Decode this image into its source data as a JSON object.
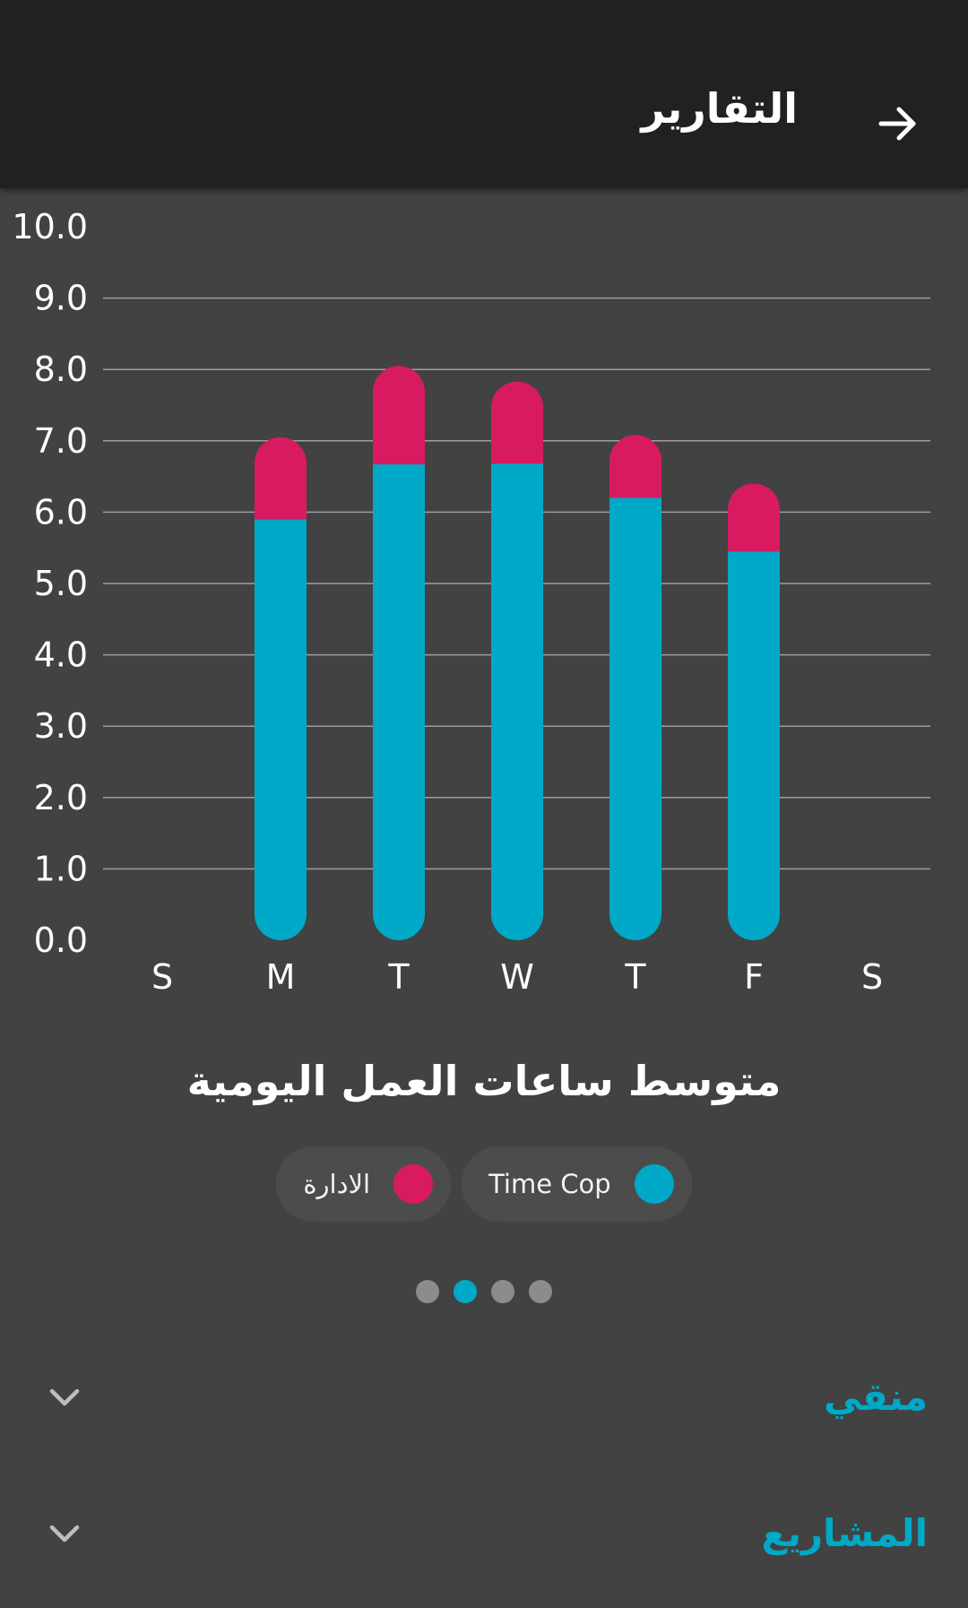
{
  "appbar": {
    "title": "التقارير",
    "back_icon": "arrow-forward-icon"
  },
  "colors": {
    "timecop": "#00a9c7",
    "admin": "#d81b60",
    "background": "#424242",
    "appbar": "#212121"
  },
  "chart_data": {
    "type": "bar",
    "stacked": true,
    "title": "متوسط ساعات العمل اليومية",
    "categories": [
      "S",
      "M",
      "T",
      "W",
      "T",
      "F",
      "S"
    ],
    "ylim": [
      0,
      10
    ],
    "yticks": [
      "0.0",
      "1.0",
      "2.0",
      "3.0",
      "4.0",
      "5.0",
      "6.0",
      "7.0",
      "8.0",
      "9.0",
      "10.0"
    ],
    "grid": true,
    "legend_position": "bottom",
    "series": [
      {
        "name": "Time Cop",
        "color": "#00a9c7",
        "values": [
          0,
          5.9,
          6.67,
          6.68,
          6.2,
          5.45,
          0
        ]
      },
      {
        "name": "الادارة",
        "color": "#d81b60",
        "values": [
          0,
          1.15,
          1.38,
          1.15,
          0.88,
          0.95,
          0
        ]
      }
    ]
  },
  "pagination": {
    "count": 4,
    "active": 1
  },
  "sections": [
    {
      "label": "منقي",
      "icon": "chevron-down-icon"
    },
    {
      "label": "المشاريع",
      "icon": "chevron-down-icon"
    }
  ]
}
